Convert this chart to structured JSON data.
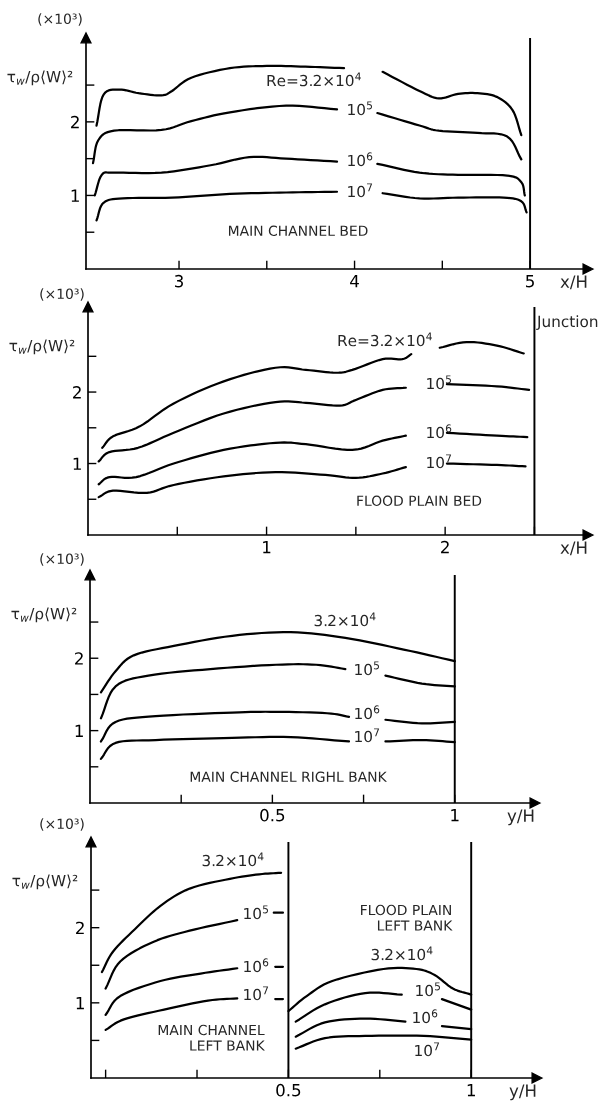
{
  "chart_data": [
    {
      "type": "line",
      "ylabel": "τ$_{w}$/ρ⟨W⟩²",
      "xlabel": "x/H",
      "xlim": [
        2.47,
        5.33
      ],
      "ylim": [
        0,
        3.14
      ],
      "xticks": [
        3,
        {
          "value": 3.5,
          "label": null
        },
        4,
        {
          "value": 4.5,
          "label": null
        },
        5
      ],
      "yticks": [
        {
          "value": 0.5,
          "label": null
        },
        1,
        {
          "value": 1.5,
          "label": null
        },
        2,
        {
          "value": 2.5,
          "label": null
        }
      ],
      "grid": false,
      "legend": false,
      "ref_lines": [
        {
          "axis": "x",
          "value": 5,
          "color": "#000000"
        }
      ],
      "series": [
        {
          "color": "#000000",
          "x": [
            2.53,
            2.57,
            2.66,
            2.77,
            2.9,
            2.96,
            3.07,
            3.29,
            3.5,
            3.72,
            3.94,
            4.05,
            4.16,
            4.37,
            4.48,
            4.59,
            4.7,
            4.81,
            4.9,
            4.95
          ],
          "values": [
            1.95,
            2.37,
            2.44,
            2.39,
            2.36,
            2.42,
            2.6,
            2.73,
            2.76,
            2.75,
            2.73,
            null,
            2.68,
            2.42,
            2.32,
            2.38,
            2.39,
            2.34,
            2.16,
            1.82
          ]
        },
        {
          "color": "#000000",
          "x": [
            2.51,
            2.54,
            2.63,
            2.9,
            3.07,
            3.29,
            3.61,
            3.9,
            4.02,
            4.13,
            4.37,
            4.48,
            4.7,
            4.87,
            4.95
          ],
          "values": [
            1.44,
            1.75,
            1.88,
            1.89,
            2.01,
            2.13,
            2.22,
            2.17,
            null,
            2.12,
            1.95,
            1.88,
            1.85,
            1.8,
            1.49
          ]
        },
        {
          "color": "#000000",
          "x": [
            2.52,
            2.56,
            2.63,
            2.9,
            3.18,
            3.4,
            3.61,
            3.9,
            4.02,
            4.13,
            4.37,
            4.59,
            4.87,
            4.95,
            4.97
          ],
          "values": [
            1.0,
            1.28,
            1.31,
            1.31,
            1.41,
            1.52,
            1.5,
            1.46,
            null,
            1.43,
            1.31,
            1.28,
            1.27,
            1.18,
            1.0
          ]
        },
        {
          "color": "#000000",
          "x": [
            2.53,
            2.57,
            2.68,
            2.96,
            3.29,
            3.61,
            3.9,
            4.02,
            4.16,
            4.37,
            4.59,
            4.85,
            4.95,
            4.98
          ],
          "values": [
            0.66,
            0.9,
            0.96,
            0.97,
            1.02,
            1.04,
            1.05,
            null,
            1.03,
            0.96,
            0.97,
            0.97,
            0.92,
            0.77
          ]
        }
      ],
      "annotations": [
        "(×10³)",
        "MAIN CHANNEL BED",
        "Re=3.2×10$^{4}$",
        "10$^{5}$",
        "10$^{6}$",
        "10$^{7}$"
      ]
    },
    {
      "type": "line",
      "ylabel": "τ$_{w}$/ρ⟨W⟩²",
      "xlabel": "x/H",
      "xlim": [
        0,
        2.8
      ],
      "ylim": [
        0,
        3.19
      ],
      "xticks": [
        {
          "value": 0.5,
          "label": null
        },
        1,
        {
          "value": 1.5,
          "label": null
        },
        2,
        {
          "value": 2.5,
          "label": null
        }
      ],
      "yticks": [
        {
          "value": 0.5,
          "label": null
        },
        1,
        {
          "value": 1.5,
          "label": null
        },
        2,
        {
          "value": 2.5,
          "label": null
        }
      ],
      "grid": false,
      "legend": false,
      "ref_lines": [
        {
          "axis": "x",
          "value": 2.5,
          "label": "Junction",
          "color": "#000000"
        }
      ],
      "series": [
        {
          "color": "#000000",
          "x": [
            0.08,
            0.14,
            0.29,
            0.48,
            0.76,
            1.05,
            1.22,
            1.39,
            1.48,
            1.65,
            1.76,
            1.81,
            1.89,
            1.97,
            2.12,
            2.29,
            2.44
          ],
          "values": [
            1.22,
            1.38,
            1.52,
            1.84,
            2.15,
            2.34,
            2.31,
            2.27,
            2.31,
            2.46,
            2.46,
            2.53,
            null,
            2.62,
            2.7,
            2.65,
            2.54
          ]
        },
        {
          "color": "#000000",
          "x": [
            0.06,
            0.12,
            0.28,
            0.48,
            0.76,
            1.05,
            1.22,
            1.41,
            1.5,
            1.65,
            1.78,
            1.9,
            2.01,
            2.29,
            2.47
          ],
          "values": [
            1.03,
            1.16,
            1.22,
            1.43,
            1.7,
            1.86,
            1.85,
            1.81,
            1.89,
            2.03,
            2.06,
            null,
            2.11,
            2.08,
            2.03
          ]
        },
        {
          "color": "#000000",
          "x": [
            0.06,
            0.12,
            0.27,
            0.48,
            0.76,
            1.05,
            1.22,
            1.48,
            1.65,
            1.78,
            1.9,
            2.01,
            2.29,
            2.46
          ],
          "values": [
            0.71,
            0.81,
            0.81,
            1.0,
            1.19,
            1.29,
            1.27,
            1.19,
            1.32,
            1.39,
            null,
            1.43,
            1.39,
            1.37
          ]
        },
        {
          "color": "#000000",
          "x": [
            0.06,
            0.14,
            0.33,
            0.48,
            0.76,
            1.05,
            1.33,
            1.5,
            1.65,
            1.78,
            1.9,
            2.01,
            2.29,
            2.45
          ],
          "values": [
            0.53,
            0.62,
            0.59,
            0.7,
            0.82,
            0.88,
            0.84,
            0.8,
            0.86,
            0.95,
            null,
            1.0,
            0.98,
            0.96
          ]
        }
      ],
      "annotations": [
        "(×10³)",
        "FLOOD PLAIN BED",
        "Re=3.2×10$^{4}$",
        "10$^{5}$",
        "10$^{6}$",
        "10$^{7}$"
      ]
    },
    {
      "type": "line",
      "ylabel": "τ$_{w}$/ρ⟨W⟩²",
      "xlabel": "y/H",
      "xlim": [
        0,
        1.22
      ],
      "ylim": [
        0,
        3.15
      ],
      "xticks": [
        {
          "value": 0.25,
          "label": null
        },
        0.5,
        {
          "value": 0.75,
          "label": null
        },
        1
      ],
      "yticks": [
        {
          "value": 0.5,
          "label": null
        },
        1,
        {
          "value": 1.5,
          "label": null
        },
        2,
        {
          "value": 2.5,
          "label": null
        }
      ],
      "grid": false,
      "legend": false,
      "ref_lines": [
        {
          "axis": "x",
          "value": 1,
          "color": "#000000"
        }
      ],
      "series": [
        {
          "color": "#000000",
          "x": [
            0.03,
            0.07,
            0.12,
            0.23,
            0.39,
            0.55,
            0.7,
            0.86,
            1.0
          ],
          "values": [
            1.53,
            1.82,
            2.04,
            2.17,
            2.31,
            2.36,
            2.28,
            2.12,
            1.96
          ]
        },
        {
          "color": "#000000",
          "x": [
            0.03,
            0.07,
            0.16,
            0.33,
            0.51,
            0.62,
            0.7,
            0.76,
            0.81,
            0.91,
            1.0
          ],
          "values": [
            1.17,
            1.61,
            1.76,
            1.85,
            1.91,
            1.91,
            1.85,
            null,
            1.76,
            1.65,
            1.61
          ]
        },
        {
          "color": "#000000",
          "x": [
            0.03,
            0.07,
            0.18,
            0.39,
            0.51,
            0.65,
            0.71,
            0.76,
            0.81,
            0.91,
            1.0
          ],
          "values": [
            0.85,
            1.12,
            1.2,
            1.25,
            1.26,
            1.24,
            1.19,
            null,
            1.15,
            1.1,
            1.12
          ]
        },
        {
          "color": "#000000",
          "x": [
            0.03,
            0.07,
            0.18,
            0.39,
            0.55,
            0.71,
            0.76,
            0.81,
            0.91,
            1.0
          ],
          "values": [
            0.61,
            0.83,
            0.87,
            0.9,
            0.91,
            0.85,
            null,
            0.85,
            0.87,
            0.84
          ]
        }
      ],
      "annotations": [
        "(×10³)",
        "MAIN CHANNEL RIGHL BANK",
        "3.2×10$^{4}$",
        "10$^{5}$",
        "10$^{6}$",
        "10$^{7}$"
      ]
    },
    {
      "type": "line",
      "ylabel": "τ$_{w}$/ρ⟨W⟩²",
      "xlabel": "y/H",
      "xlim": [
        -0.04,
        1.18
      ],
      "ylim": [
        0,
        3.14
      ],
      "xticks": [
        {
          "value": 0,
          "label": null
        },
        {
          "value": 0.25,
          "label": null
        },
        0.5,
        {
          "value": 0.75,
          "label": null
        },
        1
      ],
      "yticks": [
        {
          "value": 0.5,
          "label": null
        },
        1,
        {
          "value": 1.5,
          "label": null
        },
        2,
        {
          "value": 2.5,
          "label": null
        }
      ],
      "grid": false,
      "legend": false,
      "ref_lines": [
        {
          "axis": "x",
          "value": 0.5,
          "color": "#000000"
        },
        {
          "axis": "x",
          "value": 1,
          "color": "#000000"
        }
      ],
      "series": [
        {
          "color": "#000000",
          "x": [
            -0.01,
            0.02,
            0.08,
            0.15,
            0.23,
            0.34,
            0.42,
            0.48
          ],
          "values": [
            1.41,
            1.68,
            1.98,
            2.29,
            2.52,
            2.65,
            2.71,
            2.73
          ]
        },
        {
          "color": "#000000",
          "x": [
            0.0,
            0.04,
            0.13,
            0.23,
            0.36,
            0.41,
            0.46,
            0.485
          ],
          "values": [
            1.19,
            1.55,
            1.81,
            1.96,
            2.1,
            null,
            2.2,
            2.2
          ]
        },
        {
          "color": "#000000",
          "x": [
            0.0,
            0.04,
            0.15,
            0.26,
            0.36,
            0.41,
            0.464,
            0.485
          ],
          "values": [
            0.84,
            1.09,
            1.29,
            1.39,
            1.46,
            null,
            1.48,
            1.48
          ]
        },
        {
          "color": "#000000",
          "x": [
            0.0,
            0.05,
            0.16,
            0.28,
            0.36,
            0.41,
            0.464,
            0.485
          ],
          "values": [
            0.64,
            0.78,
            0.91,
            1.03,
            1.06,
            null,
            1.05,
            1.05
          ]
        },
        {
          "color": "#000000",
          "x": [
            0.5,
            0.55,
            0.62,
            0.76,
            0.85,
            0.9,
            0.95,
            1.0
          ],
          "values": [
            0.89,
            1.09,
            1.29,
            1.45,
            1.45,
            1.37,
            1.19,
            1.11
          ]
        },
        {
          "color": "#000000",
          "x": [
            0.52,
            0.6,
            0.71,
            0.81,
            0.86,
            0.92,
            1.0
          ],
          "values": [
            0.75,
            0.98,
            1.13,
            1.11,
            null,
            1.05,
            0.91
          ]
        },
        {
          "color": "#000000",
          "x": [
            0.52,
            0.6,
            0.71,
            0.82,
            0.87,
            0.92,
            1.0
          ],
          "values": [
            0.55,
            0.74,
            0.79,
            0.75,
            null,
            0.69,
            0.65
          ]
        },
        {
          "color": "#000000",
          "x": [
            0.52,
            0.6,
            0.71,
            0.87,
            1.0
          ],
          "values": [
            0.39,
            0.53,
            0.56,
            0.56,
            0.51
          ]
        }
      ],
      "annotations": [
        "(×10³)",
        "MAIN CHANNEL\nLEFT BANK",
        "FLOOD PLAIN\nLEFT BANK",
        "3.2×10$^{4}$",
        "10$^{5}$",
        "10$^{6}$",
        "10$^{7}$",
        "3.2×10$^{4}$",
        "10$^{5}$",
        "10$^{6}$",
        "10$^{7}$"
      ]
    }
  ]
}
